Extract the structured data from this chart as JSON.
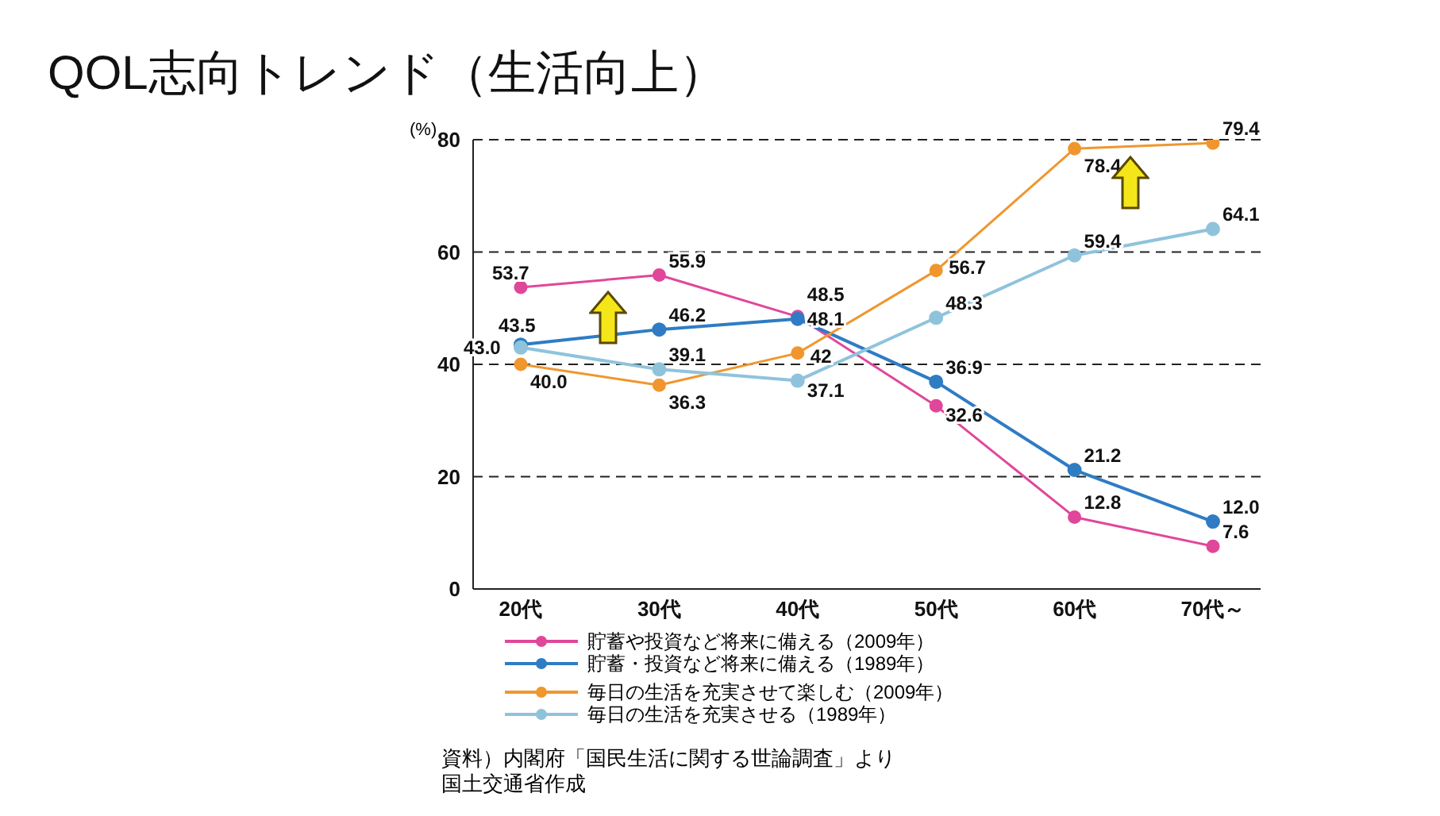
{
  "chart_data": {
    "type": "line",
    "title": "QOL志向トレンド（生活向上）",
    "ylabel": "(%)",
    "categories": [
      "20代",
      "30代",
      "40代",
      "50代",
      "60代",
      "70代～"
    ],
    "series": [
      {
        "name": "貯蓄や投資など将来に備える（2009年）",
        "color": "#e0479a",
        "values": [
          53.7,
          55.9,
          48.5,
          32.6,
          12.8,
          7.6
        ],
        "value_labels": [
          "53.7",
          "55.9",
          "48.5",
          "32.6",
          "12.8",
          "7.6"
        ]
      },
      {
        "name": "貯蓄・投資など将来に備える（1989年）",
        "color": "#2f7cc4",
        "values": [
          43.5,
          46.2,
          48.1,
          36.9,
          21.2,
          12.0
        ],
        "value_labels": [
          "43.5",
          "46.2",
          "48.1",
          "36.9",
          "21.2",
          "12.0"
        ]
      },
      {
        "name": "毎日の生活を充実させて楽しむ（2009年）",
        "color": "#f0962e",
        "values": [
          40.0,
          36.3,
          42,
          56.7,
          78.4,
          79.4
        ],
        "value_labels": [
          "40.0",
          "36.3",
          "42",
          "56.7",
          "78.4",
          "79.4"
        ]
      },
      {
        "name": "毎日の生活を充実させる（1989年）",
        "color": "#8fc3dc",
        "values": [
          43.0,
          39.1,
          37.1,
          48.3,
          59.4,
          64.1
        ],
        "value_labels": [
          "43.0",
          "39.1",
          "37.1",
          "48.3",
          "59.4",
          "64.1"
        ]
      }
    ],
    "ylim": [
      0,
      80
    ],
    "yticks": [
      0,
      20,
      40,
      60,
      80
    ],
    "grid": "y",
    "legend": "bottom",
    "marker": "circle",
    "annotations": [
      "資料）内閣府「国民生活に関する世論調査」より国土交通省作成"
    ]
  }
}
